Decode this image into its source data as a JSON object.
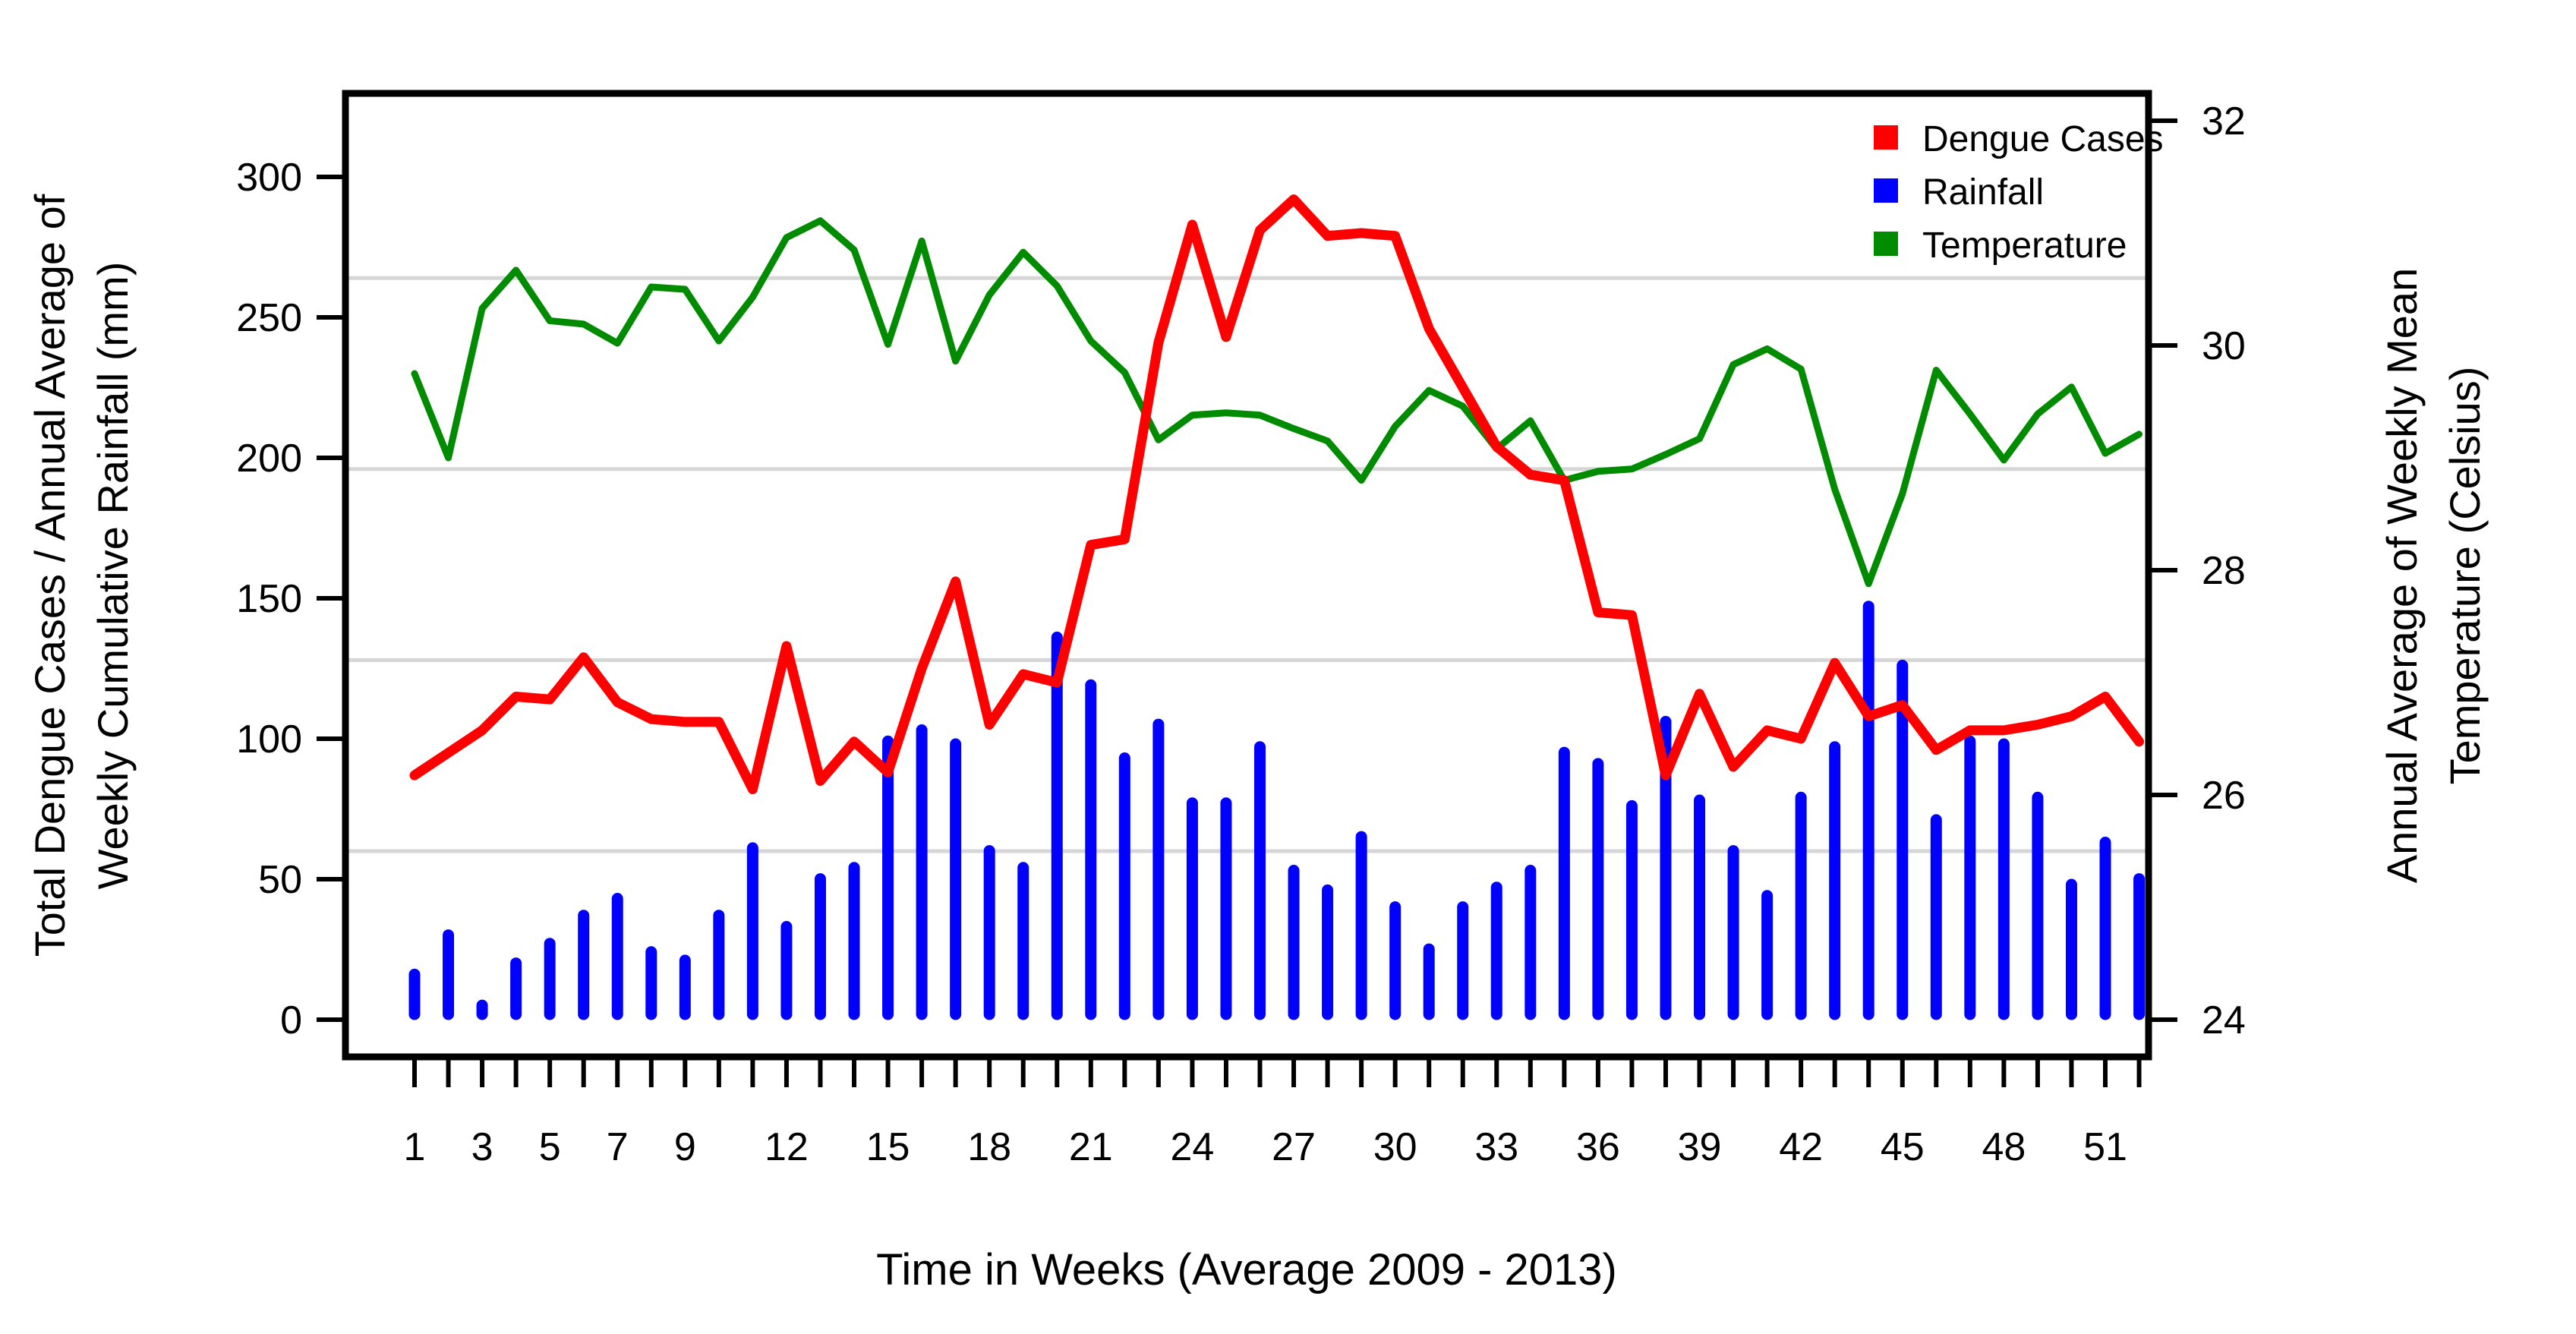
{
  "chart_data": {
    "type": "mixed",
    "subtype": "dual-axis bar+line, R-base style",
    "x_label": "Time in Weeks (Average 2009 - 2013)",
    "y_left_label_line1": "Total Dengue Cases / Annual Average of",
    "y_left_label_line2": "Weekly Cumulative Rainfall (mm)",
    "y_right_label_line1": "Annual Average of Weekly Mean",
    "y_right_label_line2": "Temperature (Celsius)",
    "weeks_count": 52,
    "x_tick_labeled_weeks": [
      1,
      3,
      5,
      7,
      9,
      12,
      15,
      18,
      21,
      24,
      27,
      30,
      33,
      36,
      39,
      42,
      45,
      48,
      51
    ],
    "y_left_ticks": [
      0,
      50,
      100,
      150,
      200,
      250,
      300
    ],
    "y_right_ticks": [
      24,
      26,
      28,
      30,
      32
    ],
    "y_left_range": [
      0,
      331
    ],
    "y_right_range": [
      24,
      32.3
    ],
    "grid": "horizontal light-gray lines, on",
    "gridline_values_left_units": [
      60,
      128,
      196,
      264
    ],
    "legend_position": "top-right inside plot",
    "series": [
      {
        "name": "Dengue Cases",
        "type": "line",
        "axis": "left",
        "color": "#ff0000",
        "values": [
          87,
          95,
          103,
          115,
          114,
          129,
          113,
          107,
          106,
          106,
          82,
          133,
          85,
          99,
          88,
          125,
          156,
          105,
          123,
          120,
          169,
          171,
          241,
          283,
          243,
          281,
          292,
          279,
          280,
          279,
          246,
          225,
          204,
          194,
          192,
          145,
          144,
          87,
          116,
          90,
          103,
          100,
          127,
          108,
          112,
          96,
          103,
          103,
          105,
          108,
          115,
          99
        ]
      },
      {
        "name": "Rainfall",
        "type": "bar",
        "axis": "left",
        "color": "#0000ff",
        "values": [
          18,
          32,
          7,
          22,
          29,
          39,
          45,
          26,
          23,
          39,
          63,
          35,
          52,
          56,
          101,
          105,
          100,
          62,
          56,
          138,
          121,
          95,
          107,
          79,
          79,
          99,
          55,
          48,
          67,
          42,
          27,
          42,
          49,
          55,
          97,
          93,
          78,
          108,
          80,
          62,
          46,
          81,
          99,
          149,
          128,
          73,
          101,
          100,
          81,
          50,
          65,
          52
        ]
      },
      {
        "name": "Temperature",
        "type": "line",
        "axis": "right",
        "color": "#008b00",
        "values": [
          29.75,
          29.0,
          30.33,
          30.67,
          30.22,
          30.19,
          30.02,
          30.52,
          30.5,
          30.04,
          30.43,
          30.96,
          31.11,
          30.85,
          30.01,
          30.93,
          29.86,
          30.45,
          30.83,
          30.53,
          30.04,
          29.76,
          29.16,
          29.38,
          29.4,
          29.38,
          29.26,
          29.15,
          28.8,
          29.28,
          29.6,
          29.46,
          29.08,
          29.33,
          28.8,
          28.88,
          28.9,
          29.03,
          29.17,
          29.83,
          29.97,
          29.79,
          28.72,
          27.88,
          28.68,
          29.78,
          29.39,
          28.98,
          29.39,
          29.63,
          29.04,
          29.21
        ]
      }
    ],
    "colors": {
      "dengue": "#ff0000",
      "rainfall": "#0000ff",
      "temperature": "#008b00",
      "gridline": "#d6d6d6",
      "axis": "#000000",
      "background": "#ffffff"
    }
  }
}
